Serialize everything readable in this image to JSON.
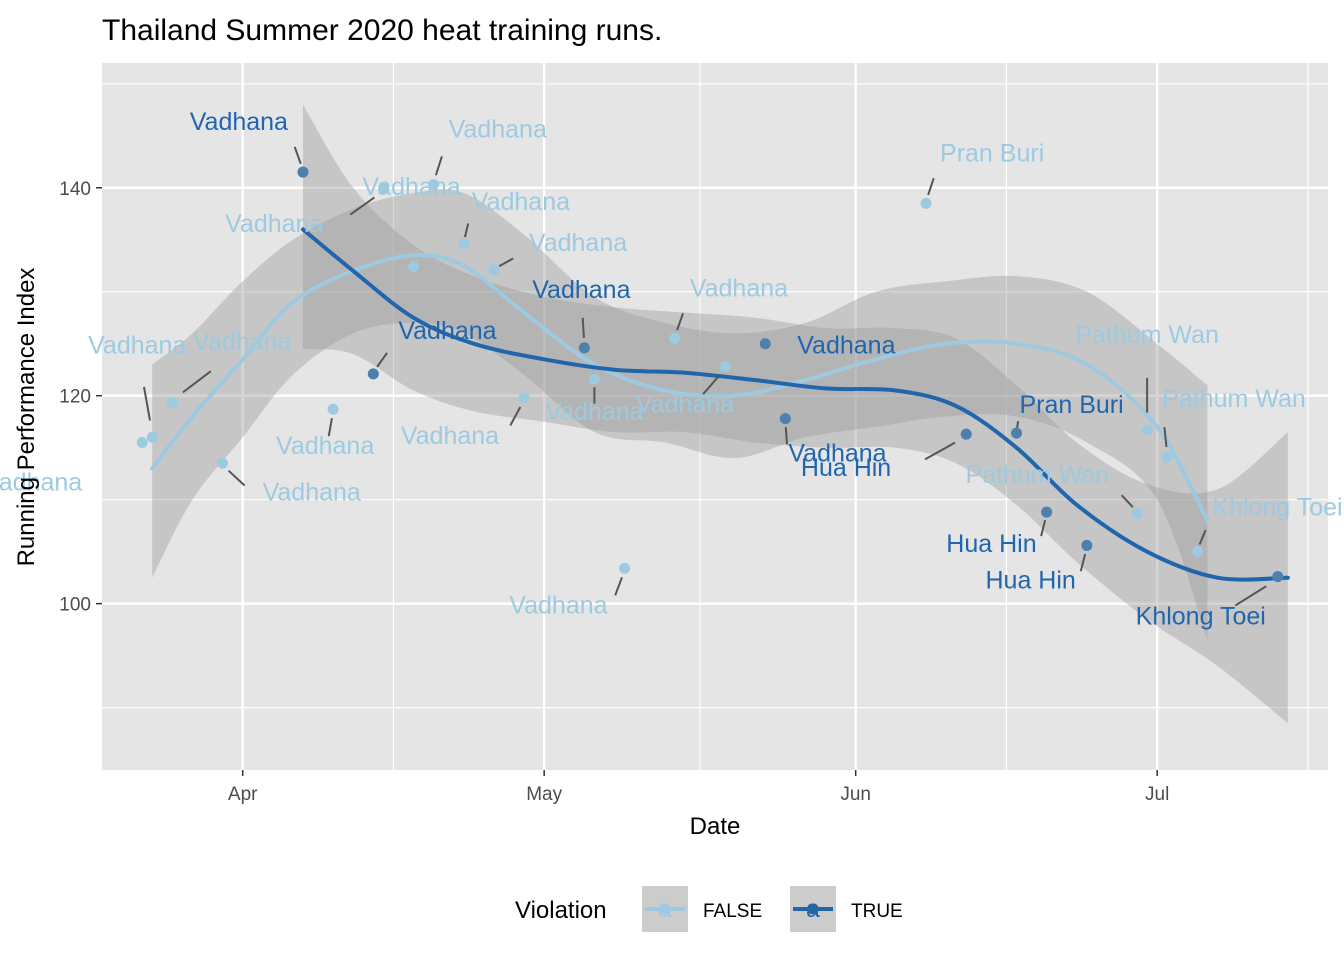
{
  "chart_data": {
    "type": "scatter",
    "title": "Thailand Summer 2020 heat training runs.",
    "xlabel": "Date",
    "ylabel": "Running Performance Index",
    "x_scale": "date",
    "xlim": [
      "2020-03-18",
      "2020-07-18"
    ],
    "ylim": [
      84,
      152
    ],
    "x_ticks": [
      {
        "value": "2020-04-01",
        "label": "Apr"
      },
      {
        "value": "2020-05-01",
        "label": "May"
      },
      {
        "value": "2020-06-01",
        "label": "Jun"
      },
      {
        "value": "2020-07-01",
        "label": "Jul"
      }
    ],
    "y_ticks": [
      100,
      120,
      140
    ],
    "grid": true,
    "legend": {
      "title": "Violation",
      "position": "bottom",
      "glyph": "a"
    },
    "colors": {
      "FALSE": "#9ecae1",
      "TRUE": "#2166ac",
      "panel": "#e5e5e5",
      "grid": "#ffffff",
      "band": "#999999",
      "segment": "#555555",
      "point_blend": "#7fa1b4"
    },
    "series": [
      {
        "name": "FALSE",
        "smooth": [
          {
            "x": "2020-03-23",
            "y": 113,
            "lo": 102.5,
            "hi": 123
          },
          {
            "x": "2020-03-27",
            "y": 118,
            "lo": 110,
            "hi": 126
          },
          {
            "x": "2020-04-01",
            "y": 123.5,
            "lo": 116,
            "hi": 131
          },
          {
            "x": "2020-04-06",
            "y": 129,
            "lo": 122,
            "hi": 135
          },
          {
            "x": "2020-04-12",
            "y": 132,
            "lo": 126,
            "hi": 138
          },
          {
            "x": "2020-04-18",
            "y": 133.5,
            "lo": 127,
            "hi": 139.5
          },
          {
            "x": "2020-04-23",
            "y": 132.5,
            "lo": 126,
            "hi": 139.5
          },
          {
            "x": "2020-04-29",
            "y": 128,
            "lo": 122,
            "hi": 135.5
          },
          {
            "x": "2020-05-06",
            "y": 123,
            "lo": 116.5,
            "hi": 129.5
          },
          {
            "x": "2020-05-13",
            "y": 120.5,
            "lo": 115.5,
            "hi": 127
          },
          {
            "x": "2020-05-20",
            "y": 120,
            "lo": 114,
            "hi": 126
          },
          {
            "x": "2020-05-27",
            "y": 121.5,
            "lo": 116,
            "hi": 127
          },
          {
            "x": "2020-06-03",
            "y": 123.5,
            "lo": 117,
            "hi": 130
          },
          {
            "x": "2020-06-10",
            "y": 125,
            "lo": 118,
            "hi": 131
          },
          {
            "x": "2020-06-17",
            "y": 125,
            "lo": 118,
            "hi": 131.5
          },
          {
            "x": "2020-06-24",
            "y": 123,
            "lo": 115.5,
            "hi": 130
          },
          {
            "x": "2020-07-01",
            "y": 117,
            "lo": 110,
            "hi": 125
          },
          {
            "x": "2020-07-06",
            "y": 108,
            "lo": 96.5,
            "hi": 121
          }
        ],
        "points": [
          {
            "x": "2020-03-22",
            "y": 115.5,
            "label": "Vadhana"
          },
          {
            "x": "2020-03-23",
            "y": 116,
            "label": "Vadhana"
          },
          {
            "x": "2020-03-25",
            "y": 119.3,
            "label": "Vadhana"
          },
          {
            "x": "2020-03-30",
            "y": 113.5,
            "label": "Vadhana"
          },
          {
            "x": "2020-04-10",
            "y": 118.7,
            "label": "Vadhana"
          },
          {
            "x": "2020-04-15",
            "y": 139.9,
            "label": "Vadhana"
          },
          {
            "x": "2020-04-18",
            "y": 132.4,
            "label": "Vadhana"
          },
          {
            "x": "2020-04-20",
            "y": 140.3,
            "label": "Vadhana"
          },
          {
            "x": "2020-04-23",
            "y": 134.6,
            "label": "Vadhana"
          },
          {
            "x": "2020-04-26",
            "y": 132.1,
            "label": "Vadhana"
          },
          {
            "x": "2020-04-29",
            "y": 119.8,
            "label": "Vadhana"
          },
          {
            "x": "2020-05-06",
            "y": 121.6,
            "label": "Vadhana"
          },
          {
            "x": "2020-05-09",
            "y": 103.4,
            "label": "Vadhana"
          },
          {
            "x": "2020-05-14",
            "y": 125.5,
            "label": "Vadhana"
          },
          {
            "x": "2020-05-19",
            "y": 122.8,
            "label": "Vadhana"
          },
          {
            "x": "2020-06-08",
            "y": 138.5,
            "label": "Pran Buri"
          },
          {
            "x": "2020-06-29",
            "y": 108.7,
            "label": "Pathum Wan"
          },
          {
            "x": "2020-06-30",
            "y": 116.7,
            "label": "Pathum Wan"
          },
          {
            "x": "2020-07-02",
            "y": 114.1,
            "label": "Pathum Wan"
          },
          {
            "x": "2020-07-05",
            "y": 105,
            "label": "Khlong Toei"
          }
        ]
      },
      {
        "name": "TRUE",
        "smooth": [
          {
            "x": "2020-04-07",
            "y": 136,
            "lo": 124.5,
            "hi": 148
          },
          {
            "x": "2020-04-12",
            "y": 132,
            "lo": 124,
            "hi": 140
          },
          {
            "x": "2020-04-18",
            "y": 127.5,
            "lo": 120.5,
            "hi": 134.5
          },
          {
            "x": "2020-04-24",
            "y": 125,
            "lo": 118.5,
            "hi": 131.5
          },
          {
            "x": "2020-05-01",
            "y": 123.5,
            "lo": 117.5,
            "hi": 129.5
          },
          {
            "x": "2020-05-08",
            "y": 122.5,
            "lo": 116.5,
            "hi": 128.5
          },
          {
            "x": "2020-05-15",
            "y": 122.2,
            "lo": 116.5,
            "hi": 128
          },
          {
            "x": "2020-05-22",
            "y": 121.5,
            "lo": 115.5,
            "hi": 127.5
          },
          {
            "x": "2020-05-29",
            "y": 120.7,
            "lo": 115,
            "hi": 126.5
          },
          {
            "x": "2020-06-05",
            "y": 120.5,
            "lo": 115,
            "hi": 126.5
          },
          {
            "x": "2020-06-11",
            "y": 119,
            "lo": 113.5,
            "hi": 125.5
          },
          {
            "x": "2020-06-17",
            "y": 115,
            "lo": 109.5,
            "hi": 121
          },
          {
            "x": "2020-06-23",
            "y": 109.5,
            "lo": 104,
            "hi": 115.5
          },
          {
            "x": "2020-06-30",
            "y": 105,
            "lo": 98.5,
            "hi": 111.5
          },
          {
            "x": "2020-07-07",
            "y": 102.5,
            "lo": 94,
            "hi": 111
          },
          {
            "x": "2020-07-14",
            "y": 102.5,
            "lo": 88.5,
            "hi": 116.5
          }
        ],
        "points": [
          {
            "x": "2020-04-07",
            "y": 141.5,
            "label": "Vadhana"
          },
          {
            "x": "2020-04-14",
            "y": 122.1,
            "label": "Vadhana"
          },
          {
            "x": "2020-05-05",
            "y": 124.6,
            "label": "Vadhana"
          },
          {
            "x": "2020-05-23",
            "y": 125,
            "label": "Vadhana"
          },
          {
            "x": "2020-05-25",
            "y": 117.8,
            "label": "Vadhana"
          },
          {
            "x": "2020-06-12",
            "y": 116.3,
            "label": "Hua Hin"
          },
          {
            "x": "2020-06-17",
            "y": 116.4,
            "label": "Pran Buri"
          },
          {
            "x": "2020-06-20",
            "y": 108.8,
            "label": "Hua Hin"
          },
          {
            "x": "2020-06-24",
            "y": 105.6,
            "label": "Hua Hin"
          },
          {
            "x": "2020-07-13",
            "y": 102.6,
            "label": "Khlong Toei"
          }
        ]
      }
    ]
  }
}
